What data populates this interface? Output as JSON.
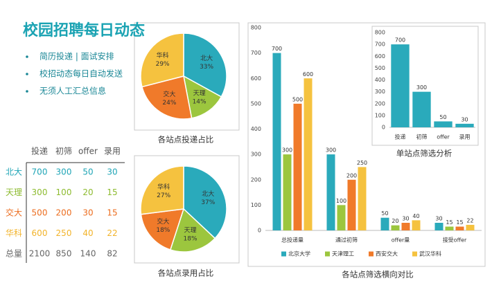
{
  "header": {
    "title": "校园招聘每日动态"
  },
  "bullets": [
    "简历投递 | 面试安排",
    "校招动态每日自动发送",
    "无须人工汇总信息"
  ],
  "table": {
    "header": [
      "投递",
      "初筛",
      "offer",
      "录用"
    ],
    "rows": [
      {
        "label": "北大",
        "cells": [
          700,
          300,
          50,
          30
        ]
      },
      {
        "label": "天理",
        "cells": [
          300,
          100,
          20,
          15
        ]
      },
      {
        "label": "交大",
        "cells": [
          500,
          200,
          30,
          15
        ]
      },
      {
        "label": "华科",
        "cells": [
          600,
          250,
          40,
          22
        ]
      },
      {
        "label": "总量",
        "cells": [
          2100,
          850,
          140,
          82
        ]
      }
    ]
  },
  "chart_data": [
    {
      "type": "pie",
      "title": "各站点投递占比",
      "categories": [
        "北大",
        "天理",
        "交大",
        "华科"
      ],
      "values": [
        33,
        14,
        24,
        29
      ],
      "value_labels": [
        "33%",
        "14%",
        "24%",
        "29%"
      ],
      "colors": [
        "#2aaabb",
        "#9cc63e",
        "#f07a2a",
        "#f5c23f"
      ]
    },
    {
      "type": "pie",
      "title": "各站点录用占比",
      "categories": [
        "北大",
        "天理",
        "交大",
        "华科"
      ],
      "values": [
        37,
        18,
        18,
        27
      ],
      "value_labels": [
        "37%",
        "18%",
        "18%",
        "27%"
      ],
      "colors": [
        "#2aaabb",
        "#9cc63e",
        "#f07a2a",
        "#f5c23f"
      ]
    },
    {
      "type": "bar",
      "title": "各站点筛选横向对比",
      "categories": [
        "总投递量",
        "通过初筛",
        "offer量",
        "接受offer"
      ],
      "series": [
        {
          "name": "北京大学",
          "color": "#2aaabb",
          "values": [
            700,
            300,
            50,
            30
          ]
        },
        {
          "name": "天津理工",
          "color": "#9cc63e",
          "values": [
            300,
            100,
            20,
            15
          ]
        },
        {
          "name": "西安交大",
          "color": "#f07a2a",
          "values": [
            500,
            200,
            30,
            15
          ]
        },
        {
          "name": "武汉华科",
          "color": "#f5c23f",
          "values": [
            600,
            250,
            40,
            22
          ]
        }
      ],
      "ylim": [
        0,
        800
      ],
      "yticks": [
        0,
        100,
        200,
        300,
        400,
        500,
        600,
        700,
        800
      ],
      "legend": "bottom"
    },
    {
      "type": "bar",
      "title": "单站点筛选分析",
      "categories": [
        "投递",
        "初筛",
        "offer",
        "录用"
      ],
      "values": [
        700,
        300,
        50,
        30
      ],
      "color": "#2aaabb",
      "ylim": [
        0,
        800
      ],
      "yticks": [
        0,
        100,
        200,
        300,
        400,
        500,
        600,
        700,
        800
      ]
    }
  ]
}
